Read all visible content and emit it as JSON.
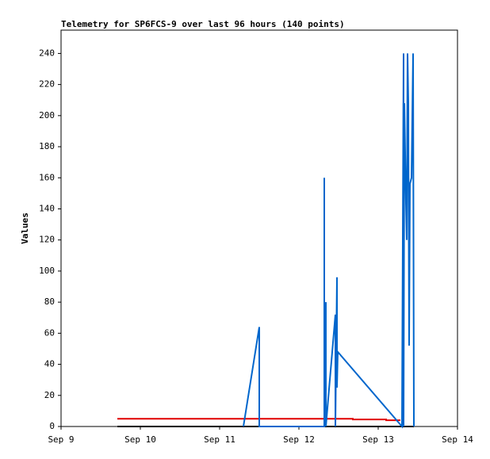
{
  "chart_data": {
    "type": "line",
    "title": "Telemetry for SP6FCS-9 over last 96 hours (140 points)",
    "y_label": "Values",
    "xlim": [
      9,
      14
    ],
    "xticks": [
      {
        "value": 9,
        "label": "Sep 9"
      },
      {
        "value": 10,
        "label": "Sep 10"
      },
      {
        "value": 11,
        "label": "Sep 11"
      },
      {
        "value": 12,
        "label": "Sep 12"
      },
      {
        "value": 13,
        "label": "Sep 13"
      },
      {
        "value": 14,
        "label": "Sep 14"
      }
    ],
    "ylim": [
      0,
      255
    ],
    "yticks": [
      0,
      20,
      40,
      60,
      80,
      100,
      120,
      140,
      160,
      180,
      200,
      220,
      240
    ],
    "grid": false,
    "series": [
      {
        "color": "#000000",
        "x": [
          9.71,
          13.45
        ],
        "values": [
          0,
          0
        ]
      },
      {
        "color": "#e00000",
        "x": [
          9.71,
          12.68,
          12.68,
          13.1,
          13.1,
          13.28
        ],
        "values": [
          5,
          5,
          4.5,
          4.5,
          4,
          4
        ]
      },
      {
        "color": "#0066cc",
        "x": [
          11.3,
          11.5,
          11.5,
          12.32,
          12.32,
          12.32,
          12.34,
          12.34,
          12.46,
          12.46,
          12.48,
          12.48,
          12.49,
          13.3,
          13.32,
          13.32,
          13.33,
          13.35,
          13.36,
          13.37,
          13.38,
          13.39,
          13.4,
          13.42,
          13.44,
          13.45
        ],
        "values": [
          0,
          64,
          0,
          0,
          160,
          0,
          80,
          0,
          72,
          0,
          96,
          25,
          48,
          0,
          240,
          0,
          208,
          144,
          120,
          240,
          208,
          52,
          156,
          160,
          240,
          0
        ]
      }
    ]
  }
}
